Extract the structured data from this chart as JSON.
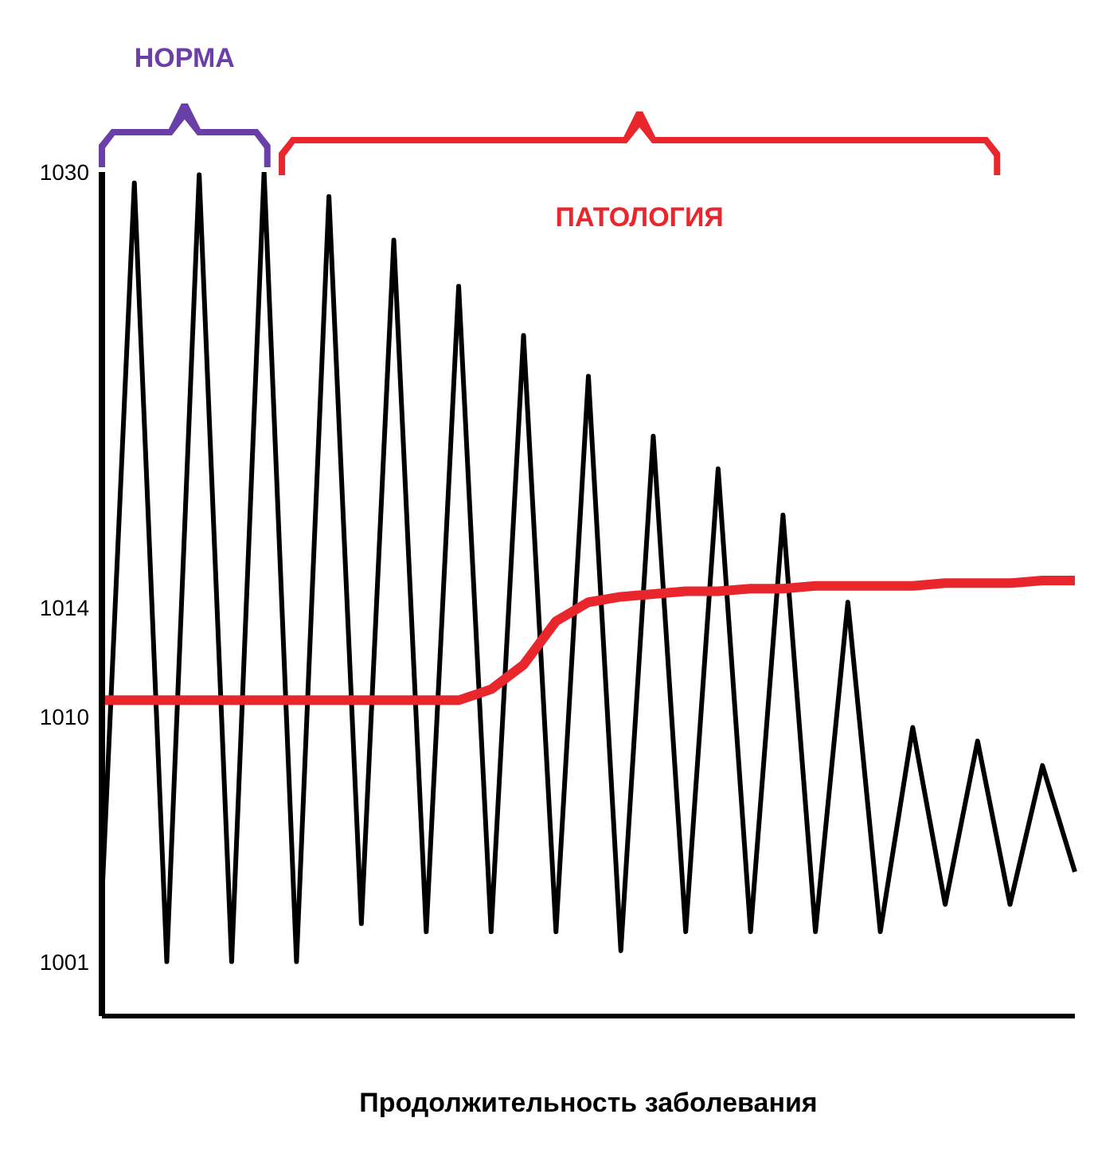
{
  "chart_data": {
    "type": "line",
    "xlabel": "Продолжительность заболевания",
    "annotations": [
      "НОРМА",
      "ПАТОЛОГИЯ"
    ],
    "categories": [
      null,
      null,
      null,
      null,
      null,
      null,
      null,
      null,
      null,
      null,
      null,
      null,
      null,
      null,
      null,
      null,
      null,
      null,
      null,
      null,
      null,
      null,
      null,
      null,
      null,
      null,
      null,
      null,
      null,
      null,
      null
    ],
    "ylim": [
      999,
      1030
    ],
    "yticks": [
      1001,
      1010,
      1014,
      1030
    ],
    "tick_labels": "y",
    "marker": "none",
    "line_style": "solid",
    "series": [
      {
        "color": "#000000",
        "values": [
          1003.3,
          1029.6,
          1001,
          1029.9,
          1001,
          1030,
          1001,
          1029.1,
          1002.4,
          1027.5,
          1002.1,
          1025.8,
          1002.1,
          1024,
          1002.1,
          1022.5,
          1001.4,
          1020.3,
          1002.1,
          1019.1,
          1002.1,
          1017.4,
          1002.1,
          1014.2,
          1002.1,
          1009.6,
          1003.1,
          1009.1,
          1003.1,
          1008.2,
          1004.3
        ]
      },
      {
        "color": "#e8262c",
        "values": [
          1010.6,
          1010.6,
          1010.6,
          1010.6,
          1010.6,
          1010.6,
          1010.6,
          1010.6,
          1010.6,
          1010.6,
          1010.6,
          1010.6,
          1011,
          1011.9,
          1013.5,
          1014.2,
          1014.4,
          1014.5,
          1014.6,
          1014.6,
          1014.7,
          1014.7,
          1014.8,
          1014.8,
          1014.8,
          1014.8,
          1014.9,
          1014.9,
          1014.9,
          1015,
          1015
        ]
      }
    ]
  }
}
